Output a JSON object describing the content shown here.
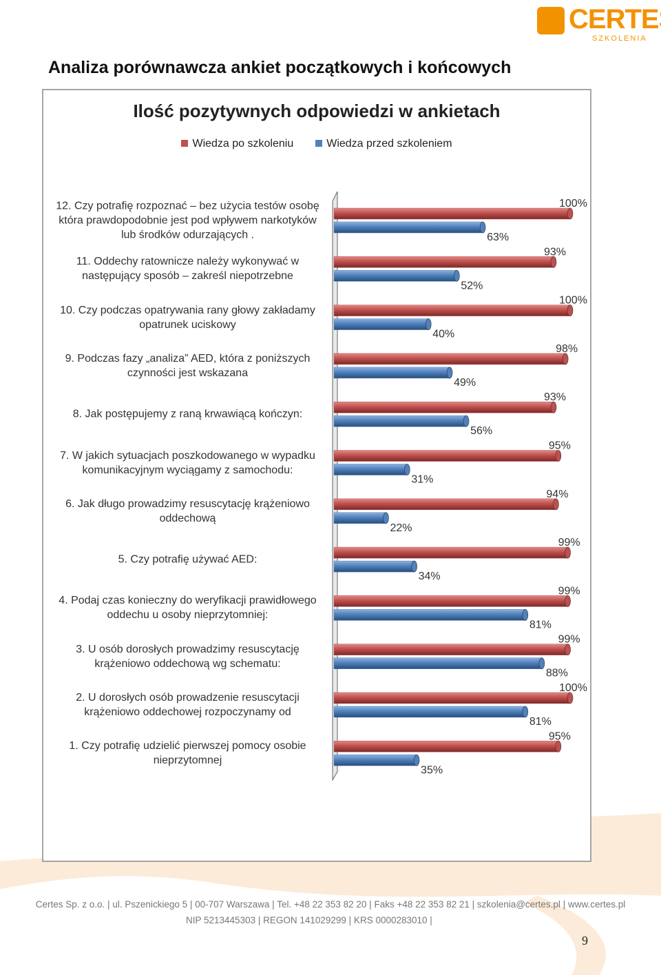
{
  "header": {
    "logo": "CERTES",
    "logo_sub": "SZKOLENIA",
    "title": "Analiza porównawcza ankiet początkowych i końcowych"
  },
  "chart_data": {
    "type": "bar",
    "orientation": "horizontal",
    "title": "Ilość pozytywnych odpowiedzi w ankietach",
    "categories": [
      "12.  Czy potrafię rozpoznać – bez użycia testów osobę która prawdopodobnie jest pod wpływem narkotyków lub  środków odurzających .",
      "11.  Oddechy ratownicze należy wykonywać w następujący sposób – zakreśl niepotrzebne",
      "10.  Czy podczas opatrywania rany głowy zakładamy opatrunek uciskowy",
      "9.  Podczas fazy „analiza” AED, która z poniższych czynności jest wskazana",
      "8.  Jak postępujemy z raną krwawiącą kończyn:",
      "7.  W jakich sytuacjach poszkodowanego w wypadku komunikacyjnym wyciągamy z samochodu:",
      "6.  Jak długo prowadzimy resuscytację krążeniowo oddechową",
      "5.  Czy potrafię używać AED:",
      "4.  Podaj czas konieczny do weryfikacji prawidłowego oddechu u osoby nieprzytomniej:",
      "3.  U osób dorosłych prowadzimy resuscytację krążeniowo oddechową wg schematu:",
      "2.  U dorosłych osób prowadzenie resuscytacji krążeniowo oddechowej rozpoczynamy od",
      "1.  Czy potrafię udzielić pierwszej pomocy osobie nieprzytomnej"
    ],
    "series": [
      {
        "name": "Wiedza po szkoleniu",
        "color": "#c0504d",
        "values": [
          100,
          93,
          100,
          98,
          93,
          95,
          94,
          99,
          99,
          99,
          100,
          95
        ],
        "value_labels": [
          "100%",
          "93%",
          "100%",
          "98%",
          "93%",
          "95%",
          "94%",
          "99%",
          "99%",
          "99%",
          "100%",
          "95%"
        ]
      },
      {
        "name": "Wiedza przed szkoleniem",
        "color": "#4f81bd",
        "values": [
          63,
          52,
          40,
          49,
          56,
          31,
          22,
          34,
          81,
          88,
          81,
          35
        ],
        "value_labels": [
          "63%",
          "52%",
          "40%",
          "49%",
          "56%",
          "31%",
          "22%",
          "34%",
          "81%",
          "88%",
          "81%",
          "35%"
        ]
      }
    ],
    "xlim": [
      0,
      100
    ],
    "legend": "top"
  },
  "footer": {
    "line1": "Certes Sp. z o.o. | ul. Pszenickiego 5 | 00-707 Warszawa | Tel. +48 22 353 82 20 | Faks +48 22 353 82 21 | szkolenia@certes.pl | www.certes.pl",
    "line2": "NIP 5213445303 | REGON 141029299 | KRS 0000283010 |",
    "page": "9"
  }
}
